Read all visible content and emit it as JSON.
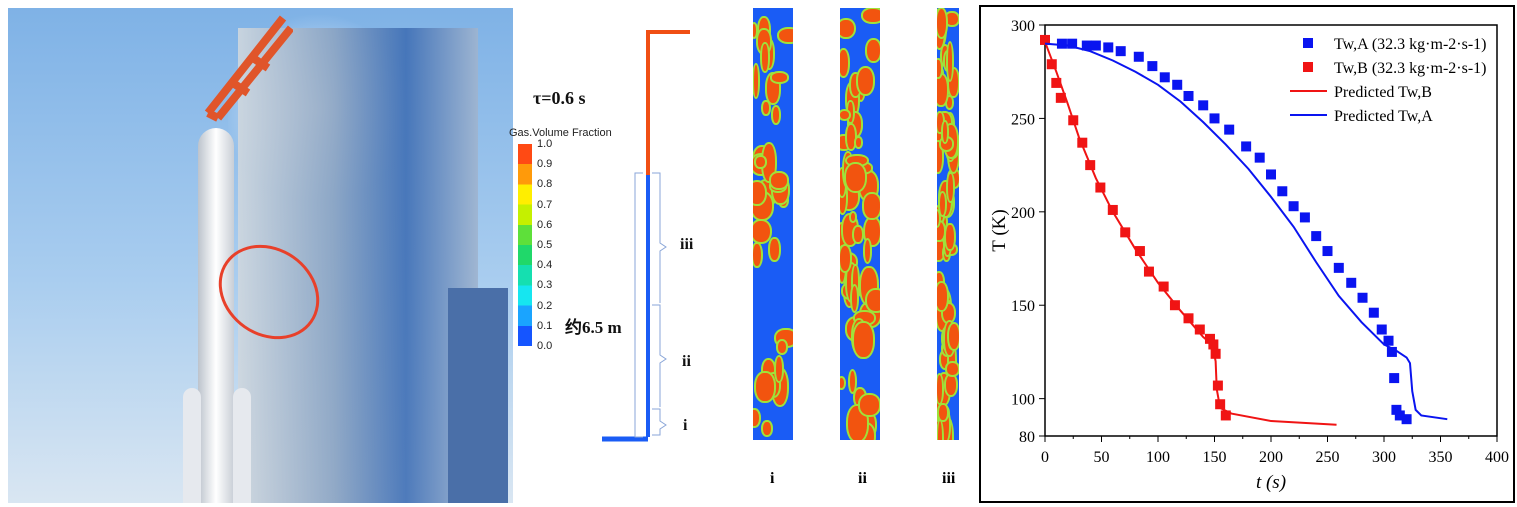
{
  "figure": {
    "tau_label": "τ=0.6 s",
    "length_label": "约6.5 m",
    "section_labels": [
      "iii",
      "ii",
      "i"
    ],
    "strip_labels": [
      "i",
      "ii",
      "iii"
    ],
    "colorbar": {
      "title": "Gas.Volume Fraction",
      "ticks": [
        "1.0",
        "0.9",
        "0.8",
        "0.7",
        "0.6",
        "0.5",
        "0.4",
        "0.3",
        "0.2",
        "0.1",
        "0.0"
      ],
      "colors": [
        "#ff4a14",
        "#ff9a0a",
        "#ffee00",
        "#c5f000",
        "#5ee03a",
        "#20d86a",
        "#15dfb0",
        "#16e6f0",
        "#1aa4ff",
        "#1555ff"
      ]
    }
  },
  "chart_data": {
    "type": "scatter",
    "xlabel": "t (s)",
    "ylabel": "T (K)",
    "xlim": [
      0,
      400
    ],
    "ylim": [
      80,
      300
    ],
    "xticks": [
      "0",
      "50",
      "100",
      "150",
      "200",
      "250",
      "300",
      "350",
      "400"
    ],
    "yticks": [
      "80",
      "100",
      "150",
      "200",
      "250",
      "300"
    ],
    "legend_position": "top-right",
    "series": [
      {
        "name": "Tw,A (32.3 kg·m-2·s-1)",
        "kind": "markers",
        "color": "#0a14f0",
        "points": [
          [
            15,
            290
          ],
          [
            24,
            290
          ],
          [
            37,
            289
          ],
          [
            45,
            289
          ],
          [
            56,
            288
          ],
          [
            67,
            286
          ],
          [
            83,
            283
          ],
          [
            95,
            278
          ],
          [
            106,
            272
          ],
          [
            117,
            268
          ],
          [
            127,
            262
          ],
          [
            140,
            257
          ],
          [
            150,
            250
          ],
          [
            163,
            244
          ],
          [
            178,
            235
          ],
          [
            190,
            229
          ],
          [
            200,
            220
          ],
          [
            210,
            211
          ],
          [
            220,
            203
          ],
          [
            230,
            197
          ],
          [
            240,
            187
          ],
          [
            250,
            179
          ],
          [
            260,
            170
          ],
          [
            271,
            162
          ],
          [
            281,
            154
          ],
          [
            291,
            146
          ],
          [
            298,
            137
          ],
          [
            304,
            131
          ],
          [
            307,
            125
          ],
          [
            309,
            111
          ],
          [
            311,
            94
          ],
          [
            314,
            91
          ],
          [
            320,
            89
          ]
        ]
      },
      {
        "name": "Tw,B (32.3 kg·m-2·s-1)",
        "kind": "markers",
        "color": "#f01414",
        "points": [
          [
            0,
            292
          ],
          [
            6,
            279
          ],
          [
            10,
            269
          ],
          [
            14,
            261
          ],
          [
            25,
            249
          ],
          [
            33,
            237
          ],
          [
            40,
            225
          ],
          [
            49,
            213
          ],
          [
            60,
            201
          ],
          [
            71,
            189
          ],
          [
            84,
            179
          ],
          [
            92,
            168
          ],
          [
            105,
            160
          ],
          [
            115,
            150
          ],
          [
            127,
            143
          ],
          [
            137,
            137
          ],
          [
            146,
            132
          ],
          [
            149,
            129
          ],
          [
            151,
            124
          ],
          [
            153,
            107
          ],
          [
            155,
            97
          ],
          [
            160,
            91
          ]
        ]
      },
      {
        "name": "Predicted Tw,B",
        "kind": "line",
        "color": "#f01414",
        "points": [
          [
            0,
            291
          ],
          [
            10,
            275
          ],
          [
            20,
            258
          ],
          [
            30,
            240
          ],
          [
            45,
            218
          ],
          [
            60,
            200
          ],
          [
            80,
            180
          ],
          [
            100,
            162
          ],
          [
            120,
            147
          ],
          [
            140,
            133
          ],
          [
            148,
            129
          ],
          [
            151,
            120
          ],
          [
            152,
            105
          ],
          [
            155,
            95
          ],
          [
            165,
            92
          ],
          [
            200,
            88
          ],
          [
            258,
            86
          ]
        ]
      },
      {
        "name": "Predicted Tw,A",
        "kind": "line",
        "color": "#0a14f0",
        "points": [
          [
            0,
            290
          ],
          [
            20,
            289
          ],
          [
            40,
            286
          ],
          [
            60,
            281
          ],
          [
            80,
            275
          ],
          [
            100,
            268
          ],
          [
            120,
            259
          ],
          [
            140,
            248
          ],
          [
            160,
            236
          ],
          [
            180,
            223
          ],
          [
            200,
            208
          ],
          [
            220,
            192
          ],
          [
            240,
            173
          ],
          [
            260,
            155
          ],
          [
            280,
            141
          ],
          [
            300,
            129
          ],
          [
            310,
            126
          ],
          [
            320,
            122
          ],
          [
            323,
            119
          ],
          [
            325,
            104
          ],
          [
            328,
            94
          ],
          [
            333,
            91
          ],
          [
            356,
            89
          ]
        ]
      }
    ]
  }
}
